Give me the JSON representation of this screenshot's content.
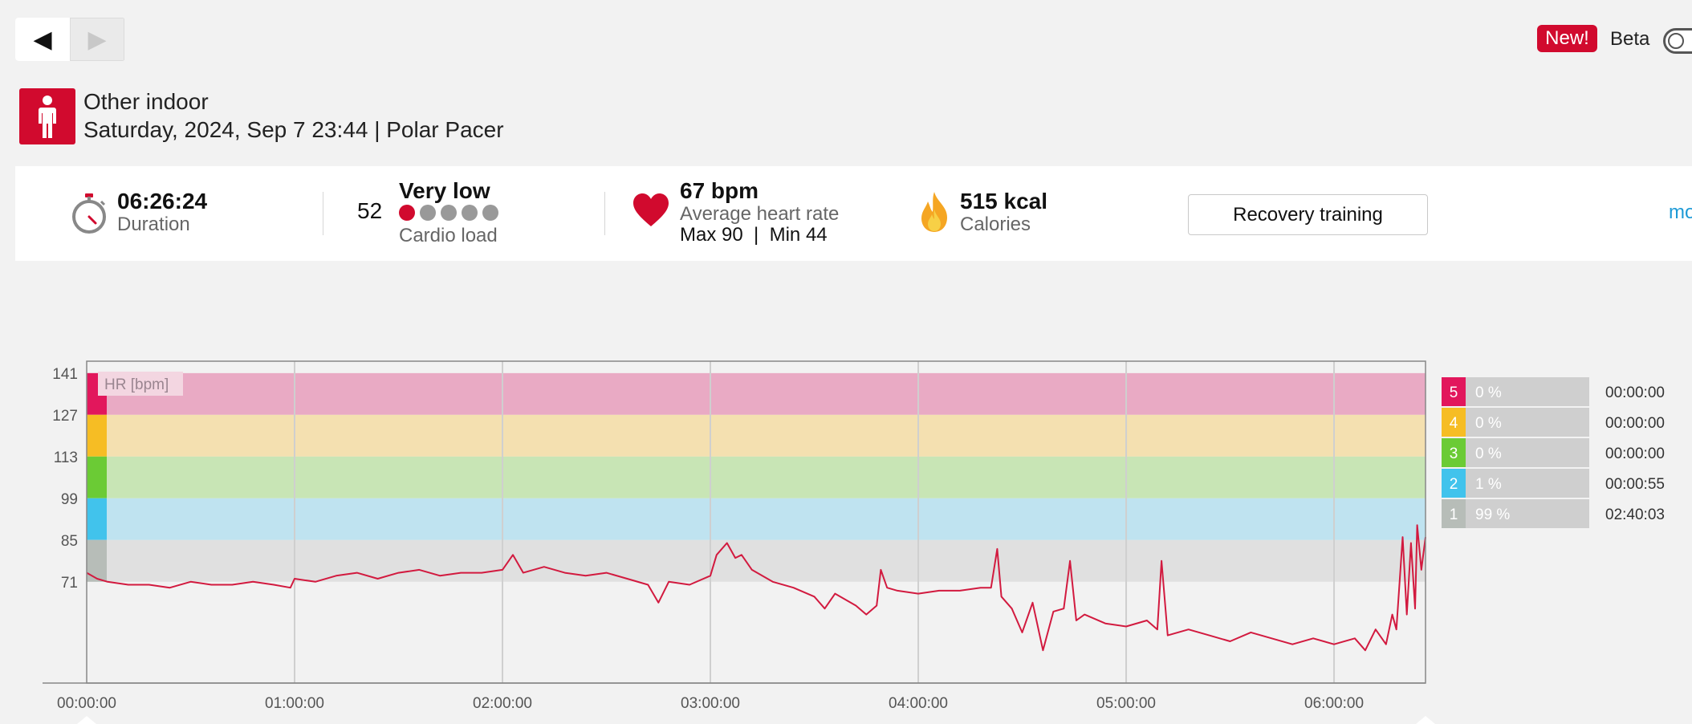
{
  "nav": {
    "prev_icon": "◀",
    "next_icon": "▶"
  },
  "beta": {
    "badge": "New!",
    "label": "Beta"
  },
  "activity": {
    "sport": "Other indoor",
    "date_device": "Saturday, 2024, Sep 7 23:44 | Polar Pacer",
    "icon": "person-standing-icon"
  },
  "summary": {
    "duration_value": "06:26:24",
    "duration_label": "Duration",
    "cardio_value": "52",
    "cardio_level": "Very low",
    "cardio_label": "Cardio load",
    "cardio_dots_filled": 1,
    "cardio_dots_total": 5,
    "hr_value": "67 bpm",
    "hr_label": "Average heart rate",
    "hr_maxmin": "Max 90  |  Min 44",
    "calories_value": "515 kcal",
    "calories_label": "Calories",
    "benefit_button": "Recovery training",
    "more_link": "mo"
  },
  "colors": {
    "accent": "#d10a2e",
    "hr_line": "#d21a3f",
    "zone5": "#e9aac4",
    "zone4": "#f4e0b0",
    "zone3": "#c8e5b5",
    "zone2": "#bfe3f0",
    "zone1": "#e0e0e0",
    "zone5_strong": "#e2175c",
    "zone4_strong": "#f6bd24",
    "zone3_strong": "#6bcb35",
    "zone2_strong": "#41c3ec",
    "zone1_strong": "#b7bdb8"
  },
  "chart_data": {
    "type": "line",
    "series_label": "HR [bpm]",
    "x_unit": "elapsed time",
    "x_ticks": [
      "00:00:00",
      "01:00:00",
      "02:00:00",
      "03:00:00",
      "04:00:00",
      "05:00:00",
      "06:00:00"
    ],
    "y_ticks": [
      141,
      127,
      113,
      99,
      85,
      71
    ],
    "ylim": [
      37,
      145
    ],
    "xlim_hours": [
      0,
      6.44
    ],
    "grid": "vertical",
    "zones": [
      {
        "zone": "5",
        "min": 127,
        "max": 141,
        "percent": "0 %",
        "time": "00:00:00"
      },
      {
        "zone": "4",
        "min": 113,
        "max": 127,
        "percent": "0 %",
        "time": "00:00:00"
      },
      {
        "zone": "3",
        "min": 99,
        "max": 113,
        "percent": "0 %",
        "time": "00:00:00"
      },
      {
        "zone": "2",
        "min": 85,
        "max": 99,
        "percent": "1 %",
        "time": "00:00:55"
      },
      {
        "zone": "1",
        "min": 71,
        "max": 85,
        "percent": "99 %",
        "time": "02:40:03"
      }
    ],
    "hr_series": [
      [
        0.0,
        74
      ],
      [
        0.05,
        72
      ],
      [
        0.1,
        71
      ],
      [
        0.2,
        70
      ],
      [
        0.3,
        70
      ],
      [
        0.4,
        69
      ],
      [
        0.5,
        71
      ],
      [
        0.6,
        70
      ],
      [
        0.7,
        70
      ],
      [
        0.8,
        71
      ],
      [
        0.9,
        70
      ],
      [
        0.98,
        69
      ],
      [
        1.0,
        72
      ],
      [
        1.1,
        71
      ],
      [
        1.2,
        73
      ],
      [
        1.3,
        74
      ],
      [
        1.4,
        72
      ],
      [
        1.5,
        74
      ],
      [
        1.6,
        75
      ],
      [
        1.7,
        73
      ],
      [
        1.8,
        74
      ],
      [
        1.9,
        74
      ],
      [
        2.0,
        75
      ],
      [
        2.05,
        80
      ],
      [
        2.1,
        74
      ],
      [
        2.2,
        76
      ],
      [
        2.3,
        74
      ],
      [
        2.4,
        73
      ],
      [
        2.5,
        74
      ],
      [
        2.6,
        72
      ],
      [
        2.7,
        70
      ],
      [
        2.75,
        64
      ],
      [
        2.8,
        71
      ],
      [
        2.9,
        70
      ],
      [
        3.0,
        73
      ],
      [
        3.03,
        80
      ],
      [
        3.08,
        84
      ],
      [
        3.12,
        79
      ],
      [
        3.15,
        80
      ],
      [
        3.2,
        75
      ],
      [
        3.3,
        71
      ],
      [
        3.4,
        69
      ],
      [
        3.5,
        66
      ],
      [
        3.55,
        62
      ],
      [
        3.6,
        67
      ],
      [
        3.7,
        63
      ],
      [
        3.75,
        60
      ],
      [
        3.8,
        63
      ],
      [
        3.82,
        75
      ],
      [
        3.85,
        69
      ],
      [
        3.9,
        68
      ],
      [
        4.0,
        67
      ],
      [
        4.1,
        68
      ],
      [
        4.2,
        68
      ],
      [
        4.3,
        69
      ],
      [
        4.35,
        69
      ],
      [
        4.38,
        82
      ],
      [
        4.4,
        66
      ],
      [
        4.45,
        62
      ],
      [
        4.5,
        54
      ],
      [
        4.55,
        64
      ],
      [
        4.6,
        48
      ],
      [
        4.65,
        61
      ],
      [
        4.7,
        62
      ],
      [
        4.73,
        78
      ],
      [
        4.76,
        58
      ],
      [
        4.8,
        60
      ],
      [
        4.9,
        57
      ],
      [
        5.0,
        56
      ],
      [
        5.1,
        58
      ],
      [
        5.15,
        55
      ],
      [
        5.17,
        78
      ],
      [
        5.2,
        53
      ],
      [
        5.3,
        55
      ],
      [
        5.4,
        53
      ],
      [
        5.5,
        51
      ],
      [
        5.6,
        54
      ],
      [
        5.7,
        52
      ],
      [
        5.8,
        50
      ],
      [
        5.9,
        52
      ],
      [
        6.0,
        50
      ],
      [
        6.1,
        52
      ],
      [
        6.15,
        48
      ],
      [
        6.2,
        55
      ],
      [
        6.25,
        50
      ],
      [
        6.28,
        60
      ],
      [
        6.3,
        55
      ],
      [
        6.33,
        86
      ],
      [
        6.35,
        60
      ],
      [
        6.37,
        84
      ],
      [
        6.39,
        62
      ],
      [
        6.4,
        90
      ],
      [
        6.42,
        75
      ],
      [
        6.44,
        86
      ]
    ]
  }
}
